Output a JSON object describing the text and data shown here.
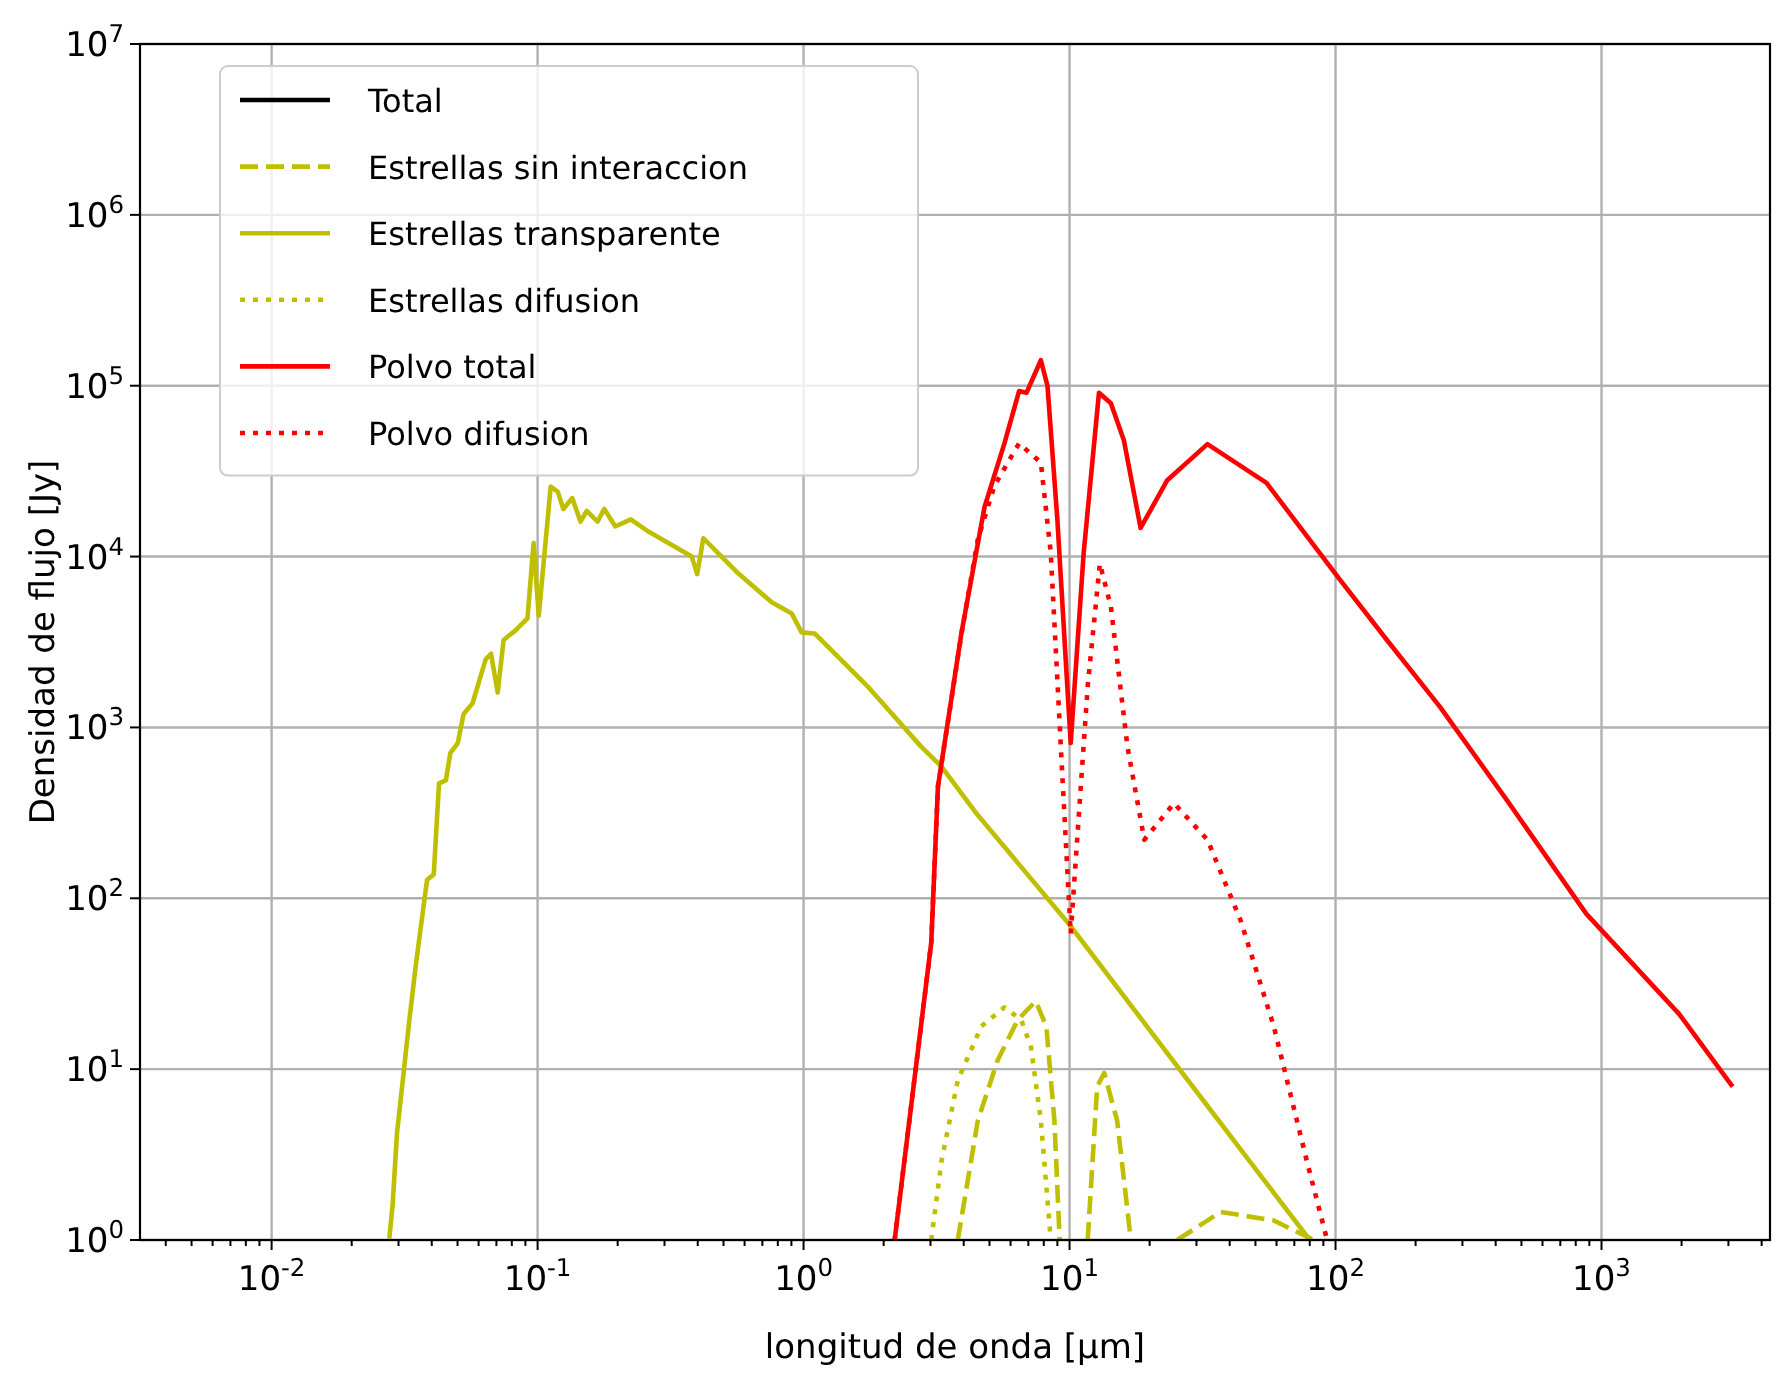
{
  "chart_data": {
    "type": "line",
    "xlabel": "longitud de onda [μm]",
    "ylabel": "Densidad de flujo [Jy]",
    "log": "xy",
    "grid": true,
    "legend": "top left",
    "xlim": [
      0.0032,
      4300
    ],
    "ylim": [
      1,
      10000000
    ],
    "xticks": [
      {
        "value": 0.004,
        "label": null
      },
      {
        "value": 0.005,
        "label": null
      },
      {
        "value": 0.006,
        "label": null
      },
      {
        "value": 0.007,
        "label": null
      },
      {
        "value": 0.008,
        "label": null
      },
      {
        "value": 0.009,
        "label": null
      },
      {
        "value": 0.01,
        "label": "10$^{-2}$"
      },
      {
        "value": 0.02,
        "label": null
      },
      {
        "value": 0.03,
        "label": null
      },
      {
        "value": 0.04,
        "label": null
      },
      {
        "value": 0.05,
        "label": null
      },
      {
        "value": 0.06,
        "label": null
      },
      {
        "value": 0.07,
        "label": null
      },
      {
        "value": 0.08,
        "label": null
      },
      {
        "value": 0.09,
        "label": null
      },
      {
        "value": 0.1,
        "label": "10$^{-1}$"
      },
      {
        "value": 0.2,
        "label": null
      },
      {
        "value": 0.3,
        "label": null
      },
      {
        "value": 0.4,
        "label": null
      },
      {
        "value": 0.5,
        "label": null
      },
      {
        "value": 0.6,
        "label": null
      },
      {
        "value": 0.7,
        "label": null
      },
      {
        "value": 0.8,
        "label": null
      },
      {
        "value": 0.9,
        "label": null
      },
      {
        "value": 1,
        "label": "10$^{0}$"
      },
      {
        "value": 2,
        "label": null
      },
      {
        "value": 3,
        "label": null
      },
      {
        "value": 4,
        "label": null
      },
      {
        "value": 5,
        "label": null
      },
      {
        "value": 6,
        "label": null
      },
      {
        "value": 7,
        "label": null
      },
      {
        "value": 8,
        "label": null
      },
      {
        "value": 9,
        "label": null
      },
      {
        "value": 10,
        "label": "10$^{1}$"
      },
      {
        "value": 20,
        "label": null
      },
      {
        "value": 30,
        "label": null
      },
      {
        "value": 40,
        "label": null
      },
      {
        "value": 50,
        "label": null
      },
      {
        "value": 60,
        "label": null
      },
      {
        "value": 70,
        "label": null
      },
      {
        "value": 80,
        "label": null
      },
      {
        "value": 90,
        "label": null
      },
      {
        "value": 100,
        "label": "10$^{2}$"
      },
      {
        "value": 200,
        "label": null
      },
      {
        "value": 300,
        "label": null
      },
      {
        "value": 400,
        "label": null
      },
      {
        "value": 500,
        "label": null
      },
      {
        "value": 600,
        "label": null
      },
      {
        "value": 700,
        "label": null
      },
      {
        "value": 800,
        "label": null
      },
      {
        "value": 900,
        "label": null
      },
      {
        "value": 1000,
        "label": "10$^{3}$"
      },
      {
        "value": 2000,
        "label": null
      },
      {
        "value": 3000,
        "label": null
      },
      {
        "value": 4000,
        "label": null
      }
    ],
    "yticks": [
      {
        "value": 1,
        "label": "10$^{0}$"
      },
      {
        "value": 10,
        "label": "10$^{1}$"
      },
      {
        "value": 100,
        "label": "10$^{2}$"
      },
      {
        "value": 1000,
        "label": "10$^{3}$"
      },
      {
        "value": 10000,
        "label": "10$^{4}$"
      },
      {
        "value": 100000,
        "label": "10$^{5}$"
      },
      {
        "value": 1000000,
        "label": "10$^{6}$"
      },
      {
        "value": 10000000,
        "label": "10$^{7}$"
      }
    ],
    "series": [
      {
        "name": "Total",
        "color": "#000000",
        "line_style": "solid"
      },
      {
        "name": "Estrellas sin interaccion",
        "color": "#bfbf00",
        "line_style": "dashed",
        "x": [
          3.8,
          4.52,
          5.37,
          6.38,
          7.46,
          8.18,
          8.77,
          9.18,
          null,
          11.7,
          12.7,
          13.5,
          15.1,
          17,
          null,
          25.4,
          37,
          58.6,
          82.8
        ],
        "values": [
          1,
          5,
          11.3,
          19.4,
          25,
          17.8,
          5,
          1,
          null,
          1,
          7.9,
          9.5,
          5,
          1,
          null,
          1,
          1.46,
          1.3,
          1
        ]
      },
      {
        "name": "Estrellas transparente",
        "color": "#bfbf00",
        "line_style": "solid",
        "x": [
          0.0277,
          0.0285,
          0.0296,
          0.0329,
          0.0348,
          0.0384,
          0.0407,
          0.0426,
          0.0452,
          0.047,
          0.0501,
          0.0527,
          0.0569,
          0.0638,
          0.0668,
          0.0708,
          0.0745,
          0.0826,
          0.0916,
          0.0966,
          0.101,
          0.112,
          0.119,
          0.125,
          0.135,
          0.145,
          0.153,
          0.168,
          0.178,
          0.196,
          0.224,
          0.261,
          0.38,
          0.398,
          0.42,
          0.569,
          0.759,
          0.902,
          0.983,
          1.1,
          1.74,
          2.75,
          3.3,
          4.42,
          10,
          30,
          80
        ],
        "values": [
          1.02,
          1.6,
          4.2,
          19,
          40,
          128,
          138,
          470,
          490,
          710,
          810,
          1200,
          1380,
          2500,
          2700,
          1600,
          3250,
          3700,
          4350,
          12000,
          4500,
          25700,
          24000,
          19000,
          22000,
          16000,
          18500,
          16000,
          19000,
          15000,
          16500,
          14000,
          10000,
          7900,
          12800,
          7950,
          5400,
          4650,
          3600,
          3550,
          1740,
          780,
          590,
          320,
          70,
          7.4,
          1
        ]
      },
      {
        "name": "Estrellas difusion",
        "color": "#bfbf00",
        "line_style": "dotted",
        "x": [
          3.02,
          3.3,
          3.8,
          4.66,
          5.69,
          6.58,
          7.16,
          7.8,
          8.5
        ],
        "values": [
          1,
          2.9,
          8.6,
          17.8,
          23,
          19.4,
          13.5,
          5,
          1
        ]
      },
      {
        "name": "Polvo total",
        "color": "#ff0000",
        "line_style": "solid",
        "x": [
          2.2,
          3.02,
          3.2,
          3.92,
          4.79,
          5.69,
          6.46,
          6.89,
          7.8,
          8.26,
          9,
          10.1,
          11.3,
          12.9,
          14.3,
          16,
          18.5,
          23.3,
          33,
          55,
          104,
          156,
          247,
          440,
          877,
          1960,
          3110
        ],
        "values": [
          1,
          55,
          450,
          3550,
          19500,
          46000,
          93000,
          91000,
          141000,
          100000,
          16400,
          810,
          10500,
          91000,
          79000,
          48000,
          14700,
          28000,
          45500,
          27000,
          7300,
          3250,
          1320,
          377,
          81,
          21,
          7.9
        ]
      },
      {
        "name": "Polvo difusion",
        "color": "#ff0000",
        "line_style": "dotted",
        "x": [
          2.2,
          3.02,
          3.2,
          3.92,
          4.52,
          5.22,
          6.46,
          7.8,
          8.5,
          9.3,
          10.1,
          11.7,
          13,
          14.3,
          16.5,
          19.1,
          24.7,
          33,
          44,
          58.6,
          78,
          93
        ],
        "values": [
          1,
          55,
          450,
          3500,
          12600,
          26000,
          46000,
          35500,
          10500,
          705,
          62,
          1740,
          9100,
          5100,
          775,
          220,
          360,
          220,
          74,
          17.8,
          2.9,
          1
        ]
      }
    ]
  }
}
